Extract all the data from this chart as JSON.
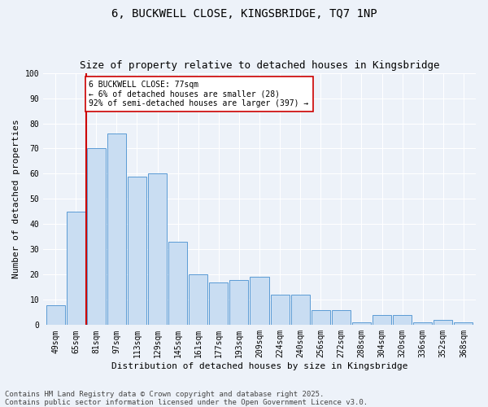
{
  "title_line1": "6, BUCKWELL CLOSE, KINGSBRIDGE, TQ7 1NP",
  "title_line2": "Size of property relative to detached houses in Kingsbridge",
  "xlabel": "Distribution of detached houses by size in Kingsbridge",
  "ylabel": "Number of detached properties",
  "footer_line1": "Contains HM Land Registry data © Crown copyright and database right 2025.",
  "footer_line2": "Contains public sector information licensed under the Open Government Licence v3.0.",
  "categories": [
    "49sqm",
    "65sqm",
    "81sqm",
    "97sqm",
    "113sqm",
    "129sqm",
    "145sqm",
    "161sqm",
    "177sqm",
    "193sqm",
    "209sqm",
    "224sqm",
    "240sqm",
    "256sqm",
    "272sqm",
    "288sqm",
    "304sqm",
    "320sqm",
    "336sqm",
    "352sqm",
    "368sqm"
  ],
  "values": [
    8,
    45,
    70,
    76,
    59,
    60,
    33,
    20,
    17,
    18,
    19,
    12,
    12,
    6,
    6,
    1,
    4,
    4,
    1,
    2,
    1
  ],
  "bar_color": "#c9ddf2",
  "bar_edge_color": "#5b9bd5",
  "red_line_x": 1.5,
  "annotation_text": "6 BUCKWELL CLOSE: 77sqm\n← 6% of detached houses are smaller (28)\n92% of semi-detached houses are larger (397) →",
  "annotation_box_color": "#ffffff",
  "annotation_box_edge": "#cc0000",
  "ylim": [
    0,
    100
  ],
  "yticks": [
    0,
    10,
    20,
    30,
    40,
    50,
    60,
    70,
    80,
    90,
    100
  ],
  "background_color": "#edf2f9",
  "grid_color": "#ffffff",
  "title_fontsize": 10,
  "subtitle_fontsize": 9,
  "axis_label_fontsize": 8,
  "tick_fontsize": 7,
  "annotation_fontsize": 7,
  "footer_fontsize": 6.5
}
